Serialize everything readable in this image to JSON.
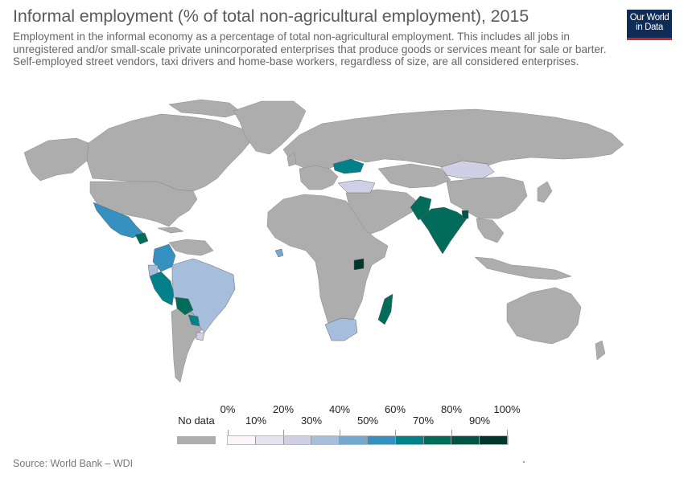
{
  "header": {
    "title": "Informal employment (% of total non-agricultural employment), 2015",
    "subtitle": "Employment in the informal economy as a percentage of total non-agricultural employment. This includes all jobs in unregistered and/or small-scale private unincorporated enterprises that produce goods or services meant for sale or barter. Self-employed street vendors, taxi drivers and home-base workers, regardless of size, are all considered enterprises."
  },
  "logo": {
    "line1": "Our World",
    "line2": "in Data",
    "bg_color": "#0f2c56",
    "bar_color": "#ce261e"
  },
  "map": {
    "no_data_color": "#adadad",
    "bins": [
      {
        "range": "0-10",
        "color": "#fdf5fa"
      },
      {
        "range": "10-20",
        "color": "#e6e2f0"
      },
      {
        "range": "20-30",
        "color": "#cfd0e5"
      },
      {
        "range": "30-40",
        "color": "#a6bddb"
      },
      {
        "range": "40-50",
        "color": "#74a9cf"
      },
      {
        "range": "50-60",
        "color": "#3690c0"
      },
      {
        "range": "60-70",
        "color": "#02818a"
      },
      {
        "range": "70-80",
        "color": "#016c59"
      },
      {
        "range": "80-90",
        "color": "#015446"
      },
      {
        "range": "90-100",
        "color": "#01362c"
      }
    ],
    "highlighted_regions": [
      {
        "name": "Mexico",
        "bin": 5
      },
      {
        "name": "Guatemala",
        "bin": 7
      },
      {
        "name": "Colombia",
        "bin": 5
      },
      {
        "name": "Ecuador",
        "bin": 3
      },
      {
        "name": "Peru",
        "bin": 6
      },
      {
        "name": "Bolivia",
        "bin": 7
      },
      {
        "name": "Brazil",
        "bin": 3
      },
      {
        "name": "Paraguay",
        "bin": 6
      },
      {
        "name": "Uruguay",
        "bin": 2
      },
      {
        "name": "Ukraine",
        "bin": 6
      },
      {
        "name": "Turkey",
        "bin": 2
      },
      {
        "name": "Mongolia",
        "bin": 2
      },
      {
        "name": "Pakistan",
        "bin": 7
      },
      {
        "name": "India",
        "bin": 7
      },
      {
        "name": "Bangladesh",
        "bin": 8
      },
      {
        "name": "Liberia",
        "bin": 4
      },
      {
        "name": "Uganda",
        "bin": 9
      },
      {
        "name": "South Africa",
        "bin": 3
      },
      {
        "name": "Madagascar",
        "bin": 7
      }
    ]
  },
  "legend": {
    "no_data_label": "No data",
    "top_labels": [
      "0%",
      "20%",
      "40%",
      "60%",
      "80%",
      "100%"
    ],
    "bottom_labels": [
      "10%",
      "30%",
      "50%",
      "70%",
      "90%"
    ]
  },
  "footer": {
    "source": "Source: World Bank – WDI"
  }
}
